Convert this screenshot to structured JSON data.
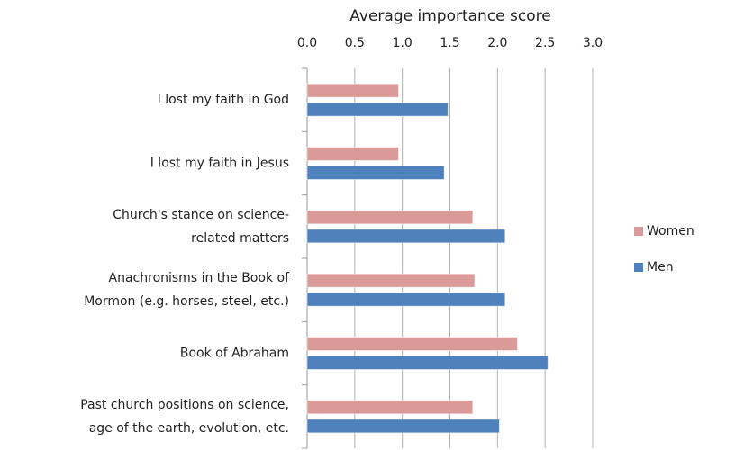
{
  "chart_data": {
    "type": "hbar",
    "x_label": "Average importance score",
    "categories": [
      [
        "I lost my faith in God"
      ],
      [
        "I lost my faith in Jesus"
      ],
      [
        "Church's stance on science-",
        "related matters"
      ],
      [
        "Anachronisms in the Book of",
        "Mormon (e.g. horses, steel, etc.)"
      ],
      [
        "Book of Abraham"
      ],
      [
        "Past church positions on science,",
        "age of the earth, evolution, etc."
      ]
    ],
    "series": [
      {
        "name": "Women",
        "color": "#d99a98",
        "values": [
          0.96,
          0.96,
          1.74,
          1.76,
          2.21,
          1.74
        ]
      },
      {
        "name": "Men",
        "color": "#4f81bd",
        "values": [
          1.48,
          1.44,
          2.08,
          2.08,
          2.53,
          2.02
        ]
      }
    ],
    "xlim": [
      0,
      3
    ],
    "xticks": [
      {
        "value": 0,
        "label": "0.0"
      },
      0.5,
      {
        "value": 1,
        "label": "1.0"
      },
      1.5,
      {
        "value": 2,
        "label": "2.0"
      },
      2.5,
      {
        "value": 3,
        "label": "3.0"
      }
    ],
    "grid": true,
    "legend": "right"
  }
}
